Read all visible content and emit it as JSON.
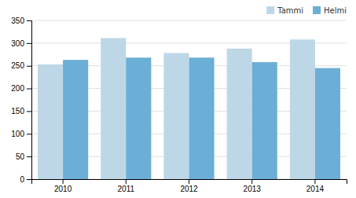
{
  "chart_data": {
    "type": "bar",
    "categories": [
      "2010",
      "2011",
      "2012",
      "2013",
      "2014"
    ],
    "series": [
      {
        "name": "Tammi",
        "color": "#bdd7e7",
        "values": [
          253,
          311,
          278,
          288,
          308
        ]
      },
      {
        "name": "Helmi",
        "color": "#6baed6",
        "values": [
          263,
          268,
          268,
          258,
          245
        ]
      }
    ],
    "ylim": [
      0,
      350
    ],
    "yticks": [
      0,
      50,
      100,
      150,
      200,
      250,
      300,
      350
    ],
    "grid": true,
    "legend": "upper right"
  }
}
